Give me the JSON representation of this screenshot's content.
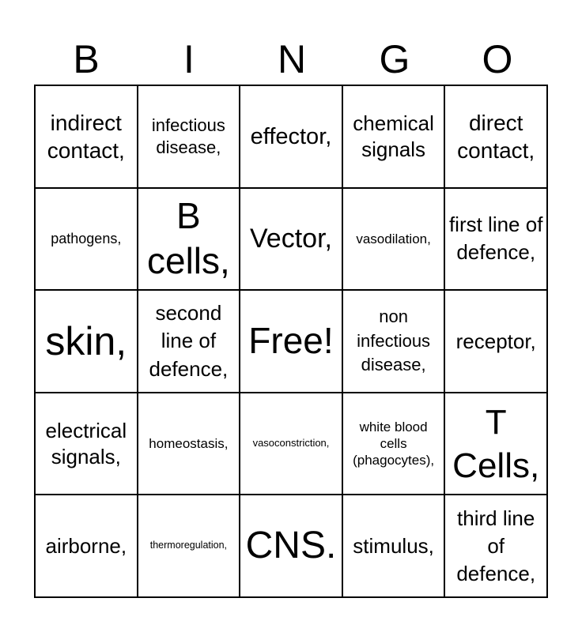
{
  "header": [
    "B",
    "I",
    "N",
    "G",
    "O"
  ],
  "cells": [
    "indirect contact,",
    "infectious disease,",
    "effector,",
    "chemical signals",
    "direct contact,",
    "pathogens,",
    "B cells,",
    "Vector,",
    "vasodilation,",
    "first line of defence,",
    "skin,",
    "second line of defence,",
    "Free!",
    "non infectious disease,",
    "receptor,",
    "electrical signals,",
    "homeostasis,",
    "vasoconstriction,",
    "white blood cells (phagocytes),",
    "T Cells,",
    "airborne,",
    "thermoregulation,",
    "CNS.",
    "stimulus,",
    "third line of defence,"
  ]
}
